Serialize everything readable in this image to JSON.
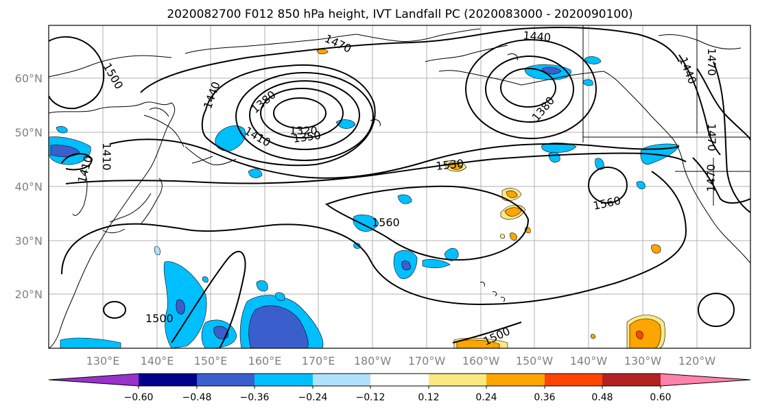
{
  "title": "2020082700 F012 850 hPa height, IVT Landfall PC (2020083000 - 2020090100)",
  "map": {
    "lat_labels": [
      "60°N",
      "50°N",
      "40°N",
      "30°N",
      "20°N"
    ],
    "lon_labels": [
      "130°E",
      "140°E",
      "150°E",
      "160°E",
      "170°E",
      "180°W",
      "170°W",
      "160°W",
      "150°W",
      "140°W",
      "130°W",
      "120°W"
    ],
    "contour_labels": [
      "1500",
      "1470",
      "1440",
      "1440",
      "1440",
      "1410",
      "1380",
      "1380",
      "1350",
      "1320",
      "1470",
      "1470",
      "1410",
      "1530",
      "1560",
      "1560",
      "1500",
      "1500",
      "1410",
      "1470"
    ],
    "colors": {
      "land_outline": "#000000",
      "contour": "#000000",
      "grid": "#b0b0b0"
    }
  },
  "colorbar": {
    "tick_labels": [
      "−0.60",
      "−0.48",
      "−0.36",
      "−0.24",
      "−0.12",
      "0.12",
      "0.24",
      "0.36",
      "0.48",
      "0.60"
    ],
    "bins": [
      {
        "color": "#9932cc"
      },
      {
        "color": "#00008b"
      },
      {
        "color": "#3a5fcd"
      },
      {
        "color": "#00bfff"
      },
      {
        "color": "#b0e2ff"
      },
      {
        "color": "#ffffff"
      },
      {
        "color": "#fce883"
      },
      {
        "color": "#ffa500"
      },
      {
        "color": "#ff4500"
      },
      {
        "color": "#b22222"
      },
      {
        "color": "#ff82ab"
      }
    ]
  }
}
